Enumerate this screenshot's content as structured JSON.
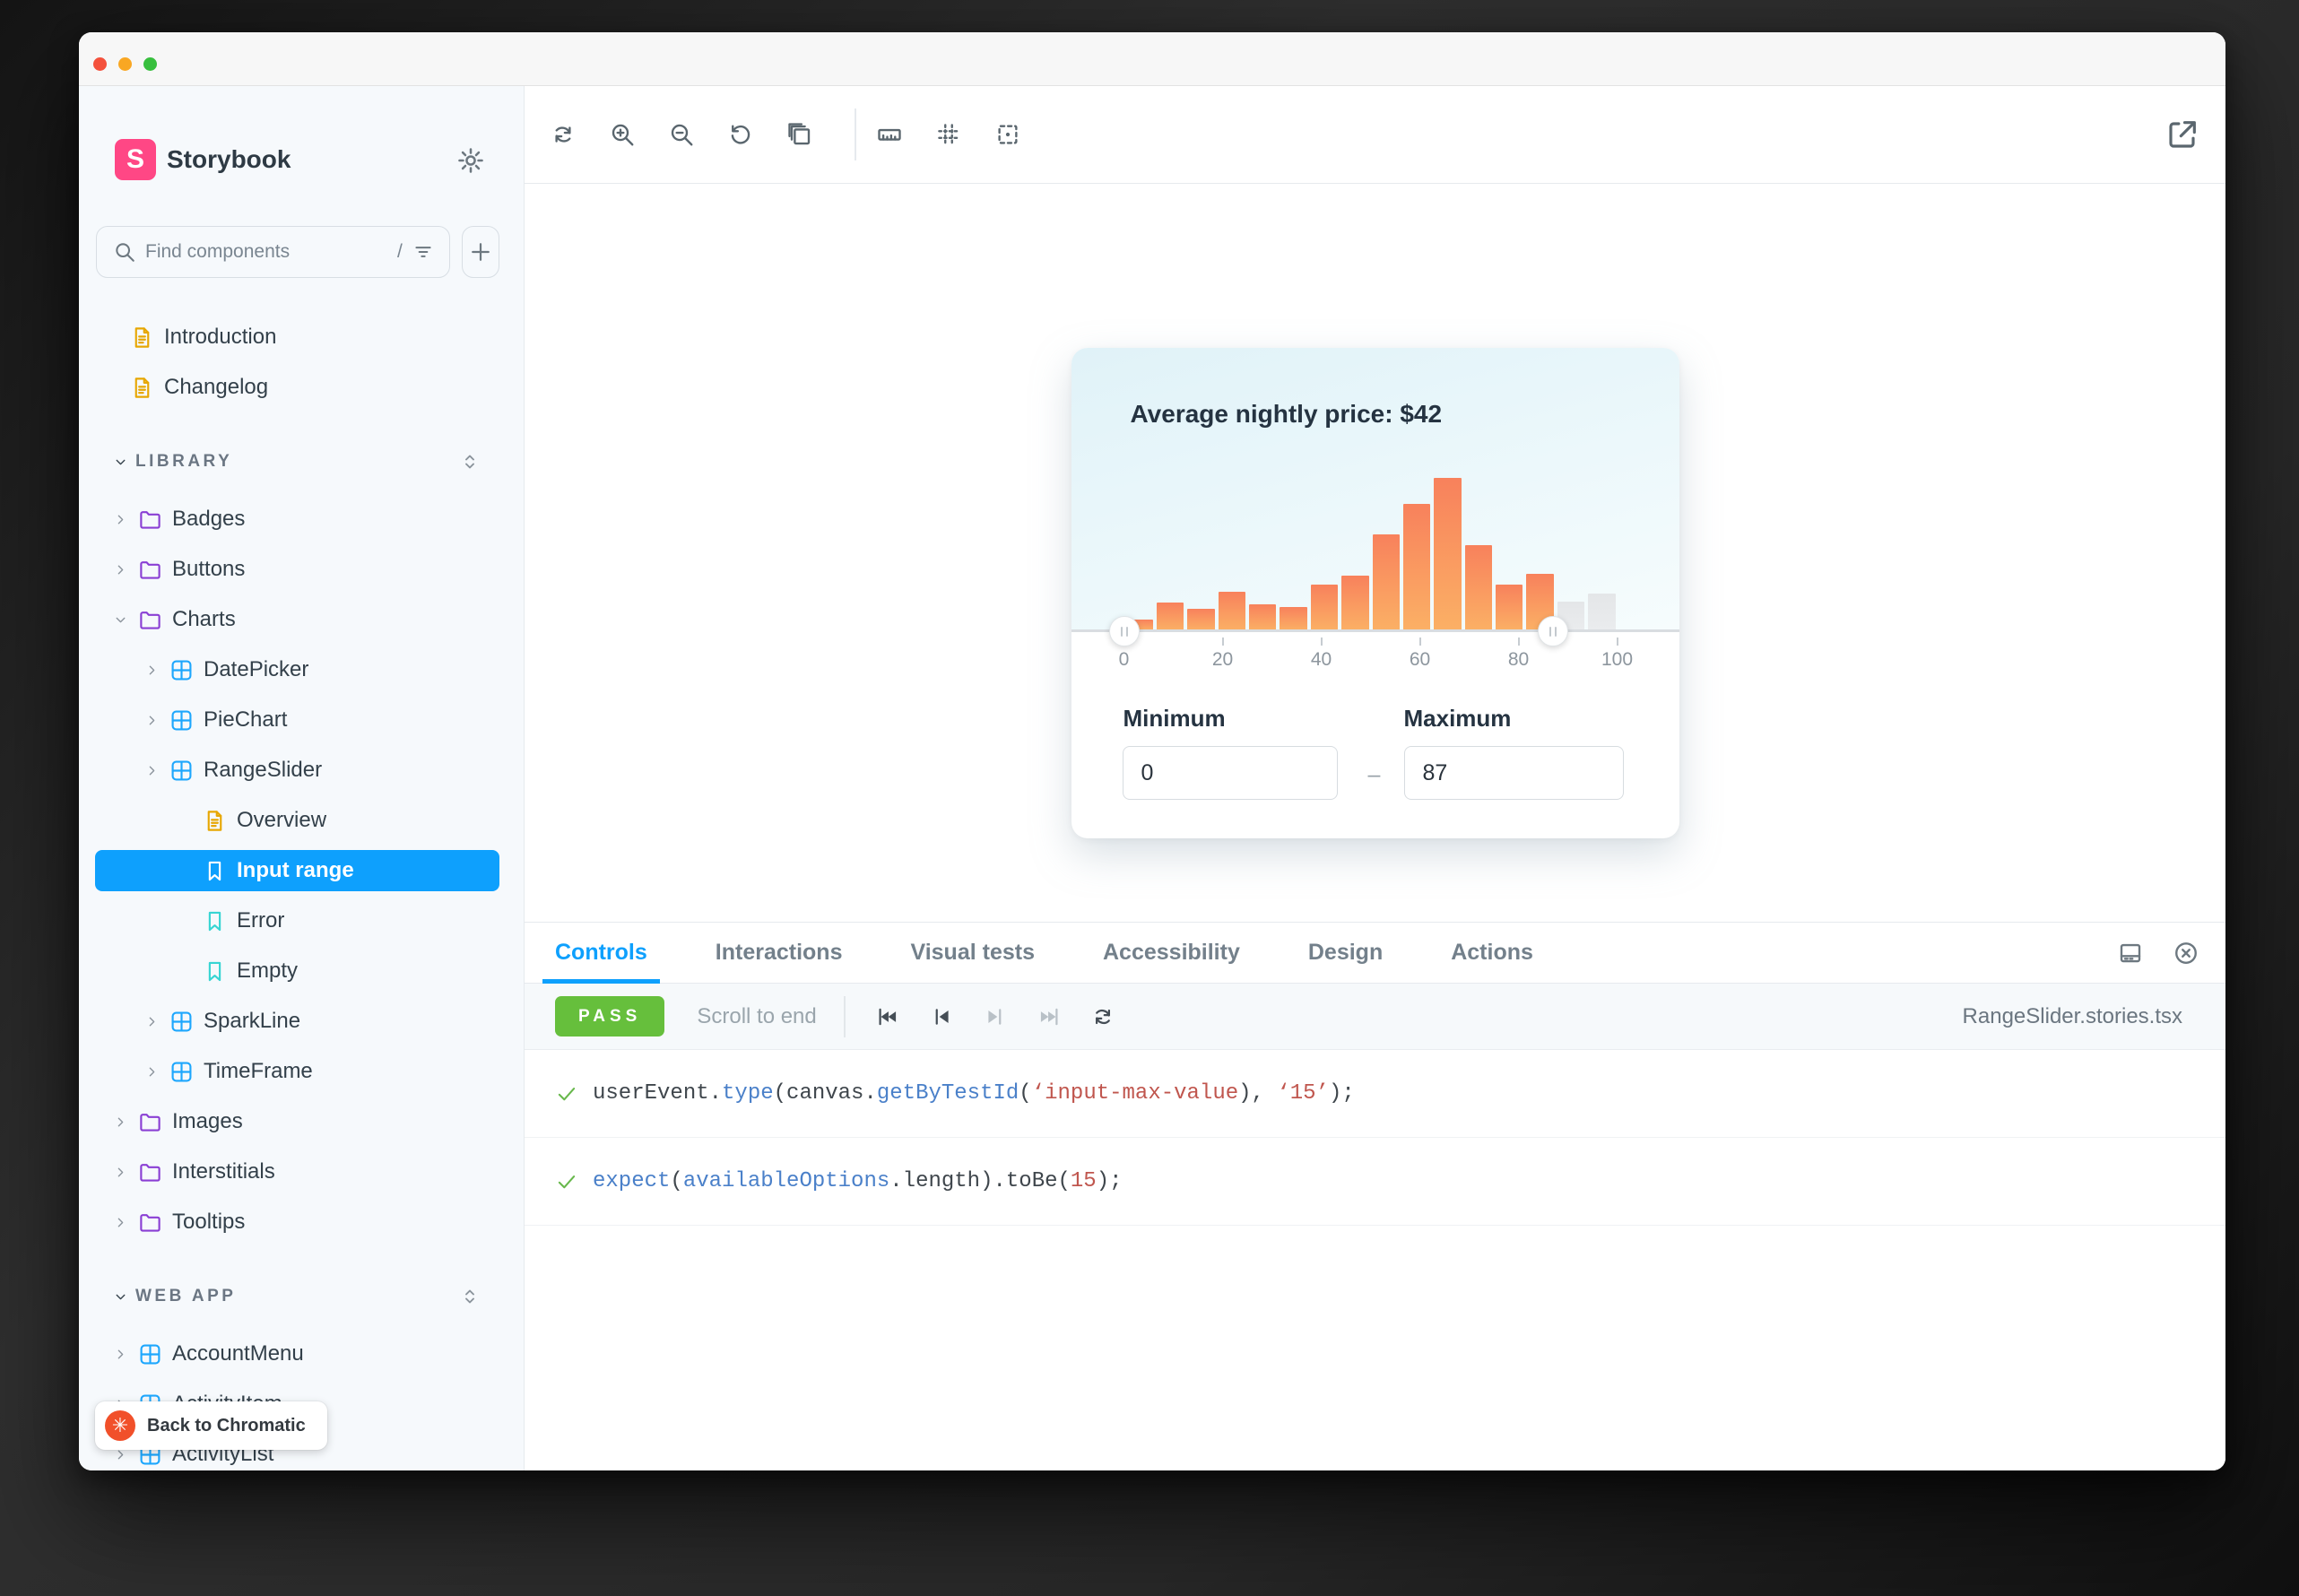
{
  "window": {
    "controls": [
      "close",
      "minimize",
      "zoom"
    ]
  },
  "sidebar": {
    "brand": {
      "name": "Storybook",
      "logo_letter": "S",
      "logo_color": "#ff4785"
    },
    "settings_icon": "gear",
    "search": {
      "placeholder": "Find components",
      "shortcut": "/",
      "filter_icon": "filter",
      "add_icon": "plus"
    },
    "tree": [
      {
        "type": "item",
        "label": "Introduction",
        "icon": "doc",
        "indent": 0,
        "chevron": "none"
      },
      {
        "type": "item",
        "label": "Changelog",
        "icon": "doc",
        "indent": 0,
        "chevron": "none"
      },
      {
        "type": "section",
        "label": "LIBRARY"
      },
      {
        "type": "item",
        "label": "Badges",
        "icon": "folder",
        "indent": 0,
        "chevron": "right"
      },
      {
        "type": "item",
        "label": "Buttons",
        "icon": "folder",
        "indent": 0,
        "chevron": "right"
      },
      {
        "type": "item",
        "label": "Charts",
        "icon": "folder",
        "indent": 0,
        "chevron": "down"
      },
      {
        "type": "item",
        "label": "DatePicker",
        "icon": "component",
        "indent": 1,
        "chevron": "right"
      },
      {
        "type": "item",
        "label": "PieChart",
        "icon": "component",
        "indent": 1,
        "chevron": "right"
      },
      {
        "type": "item",
        "label": "RangeSlider",
        "icon": "component",
        "indent": 1,
        "chevron": "right"
      },
      {
        "type": "item",
        "label": "Overview",
        "icon": "doc",
        "indent": 2,
        "chevron": "none"
      },
      {
        "type": "item",
        "label": "Input range",
        "icon": "bookmark",
        "indent": 2,
        "chevron": "none",
        "selected": true
      },
      {
        "type": "item",
        "label": "Error",
        "icon": "bookmark",
        "indent": 2,
        "chevron": "none"
      },
      {
        "type": "item",
        "label": "Empty",
        "icon": "bookmark",
        "indent": 2,
        "chevron": "none"
      },
      {
        "type": "item",
        "label": "SparkLine",
        "icon": "component",
        "indent": 1,
        "chevron": "right"
      },
      {
        "type": "item",
        "label": "TimeFrame",
        "icon": "component",
        "indent": 1,
        "chevron": "right"
      },
      {
        "type": "item",
        "label": "Images",
        "icon": "folder",
        "indent": 0,
        "chevron": "right"
      },
      {
        "type": "item",
        "label": "Interstitials",
        "icon": "folder",
        "indent": 0,
        "chevron": "right"
      },
      {
        "type": "item",
        "label": "Tooltips",
        "icon": "folder",
        "indent": 0,
        "chevron": "right"
      },
      {
        "type": "section",
        "label": "WEB APP"
      },
      {
        "type": "item",
        "label": "AccountMenu",
        "icon": "component",
        "indent": 0,
        "chevron": "right"
      },
      {
        "type": "item",
        "label": "ActivityItem",
        "icon": "component",
        "indent": 0,
        "chevron": "right"
      },
      {
        "type": "item",
        "label": "ActivityList",
        "icon": "component",
        "indent": 0,
        "chevron": "right"
      }
    ],
    "back_to_chromatic": {
      "label": "Back to Chromatic",
      "logo_color": "#f1502a"
    }
  },
  "canvas": {
    "toolbar": {
      "left_icons": [
        "sync",
        "zoom-in",
        "zoom-out",
        "zoom-reset",
        "viewports"
      ],
      "right_icons": [
        "ruler",
        "grid",
        "measure"
      ],
      "external_icon": "external-link"
    }
  },
  "chart_data": {
    "type": "bar",
    "title": "Average nightly price: $42",
    "xlabel": "",
    "ylabel": "",
    "x_axis": {
      "min": 0,
      "max": 100,
      "ticks": [
        0,
        20,
        40,
        60,
        80,
        100
      ]
    },
    "bin_width": 6.25,
    "heights_pct_of_max": [
      7,
      18,
      14,
      25,
      17,
      15,
      30,
      36,
      63,
      83,
      100,
      56,
      30,
      37,
      19,
      24
    ],
    "selected_range": [
      0,
      87
    ],
    "bar_color_top": "#f8815c",
    "bar_color_bottom": "#fbb065",
    "inactive_bar_color": "#e6e8ea",
    "grid": false,
    "legend": false
  },
  "story": {
    "card": {
      "form": {
        "minimum": {
          "label": "Minimum",
          "value": "0"
        },
        "separator": "–",
        "maximum": {
          "label": "Maximum",
          "value": "87"
        }
      }
    }
  },
  "panel": {
    "tabs": [
      {
        "label": "Controls",
        "active": true
      },
      {
        "label": "Interactions",
        "active": false
      },
      {
        "label": "Visual tests",
        "active": false
      },
      {
        "label": "Accessibility",
        "active": false
      },
      {
        "label": "Design",
        "active": false
      },
      {
        "label": "Actions",
        "active": false
      }
    ],
    "right_icons": [
      "panel-bottom",
      "close-circle"
    ],
    "toolbar": {
      "status": "PASS",
      "status_color": "#66bf3c",
      "scroll_label": "Scroll to end",
      "playback": [
        {
          "icon": "skip-start",
          "enabled": true
        },
        {
          "icon": "step-back",
          "enabled": true
        },
        {
          "icon": "step-forward",
          "enabled": false
        },
        {
          "icon": "skip-end",
          "enabled": false
        },
        {
          "icon": "rerun",
          "enabled": true
        }
      ],
      "file": "RangeSlider.stories.tsx"
    },
    "steps": [
      {
        "tokens": [
          {
            "text": "userEvent.",
            "color": "plain"
          },
          {
            "text": "type",
            "color": "blue"
          },
          {
            "text": "(canvas.",
            "color": "plain"
          },
          {
            "text": "getByTestId",
            "color": "blue"
          },
          {
            "text": "(",
            "color": "plain"
          },
          {
            "text": "‘input-max-value",
            "color": "red"
          },
          {
            "text": "), ",
            "color": "plain"
          },
          {
            "text": "‘15’",
            "color": "red"
          },
          {
            "text": ");",
            "color": "plain"
          }
        ]
      },
      {
        "tokens": [
          {
            "text": "expect",
            "color": "blue"
          },
          {
            "text": "(",
            "color": "plain"
          },
          {
            "text": "availableOptions",
            "color": "blue"
          },
          {
            "text": ".length).toBe(",
            "color": "plain"
          },
          {
            "text": "15",
            "color": "red"
          },
          {
            "text": ");",
            "color": "plain"
          }
        ]
      }
    ]
  }
}
